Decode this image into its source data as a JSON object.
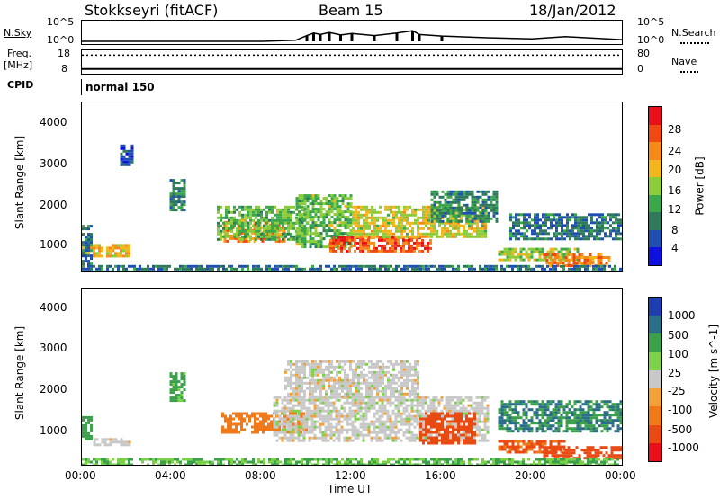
{
  "header": {
    "station": "Stokkseyri (fitACF)",
    "beam": "Beam 15",
    "date": "18/Jan/2012"
  },
  "top_panels": {
    "nsky_label": "N.Sky",
    "nsky_ticks": [
      "10^5",
      "10^0"
    ],
    "nsearch_label": "N.Search",
    "nsearch_ticks": [
      "10^5",
      "10^0"
    ],
    "freq_label": "Freq.",
    "freq_unit": "[MHz]",
    "freq_ticks": [
      "18",
      "8"
    ],
    "nave_label": "Nave",
    "nave_ticks": [
      "80",
      "0"
    ],
    "cpid_label": "CPID",
    "cpid_value": "normal 150"
  },
  "axes": {
    "ylabel": "Slant Range [km]",
    "xlabel": "Time UT",
    "yticks": [
      "4000",
      "3000",
      "2000",
      "1000"
    ],
    "xticks": [
      "00:00",
      "04:00",
      "08:00",
      "12:00",
      "16:00",
      "20:00",
      "00:00"
    ]
  },
  "colorbars": {
    "power": {
      "title": "Power [dB]",
      "labels": [
        "28",
        "24",
        "20",
        "16",
        "12",
        "8",
        "4"
      ],
      "colors": [
        "#e8101a",
        "#f04a12",
        "#f58a1a",
        "#f2b51e",
        "#8ccc3a",
        "#3aa84a",
        "#2e7a5a",
        "#1f4fb0",
        "#1010e0"
      ]
    },
    "velocity": {
      "title": "Velocity [m s^-1]",
      "labels": [
        "1000",
        "500",
        "100",
        "25",
        "-25",
        "-100",
        "-500",
        "-1000"
      ],
      "colors": [
        "#1f3fb0",
        "#2a6e8a",
        "#3aa04a",
        "#7cd04a",
        "#c8c8c8",
        "#f2a13a",
        "#f07a1a",
        "#e84a12",
        "#e8101a"
      ]
    }
  },
  "chart_data": [
    {
      "type": "line",
      "title": "N.Sky / N.Search",
      "x_range": [
        0,
        24
      ],
      "y_scale": "log",
      "y_range": [
        1,
        100000
      ],
      "series": [
        {
          "name": "N.Sky",
          "x": [
            0,
            2,
            4,
            6,
            8,
            9.5,
            10,
            10.3,
            10.6,
            11,
            11.5,
            12,
            13,
            14,
            14.7,
            15,
            16,
            18,
            20,
            21.5,
            24
          ],
          "y": [
            1,
            1,
            1,
            1,
            1,
            2,
            40,
            200,
            80,
            300,
            60,
            150,
            40,
            200,
            900,
            80,
            30,
            10,
            5,
            20,
            3
          ]
        }
      ]
    },
    {
      "type": "line",
      "title": "Freq. / Nave",
      "x_range": [
        0,
        24
      ],
      "series": [
        {
          "name": "Freq.",
          "x": [
            0,
            24
          ],
          "y": [
            16.8,
            16.8
          ]
        },
        {
          "name": "Nave",
          "x": [
            0,
            24
          ],
          "y": [
            9,
            9
          ]
        }
      ]
    },
    {
      "type": "heatmap",
      "title": "Power [dB]",
      "x_range": [
        0,
        24
      ],
      "y_range": [
        180,
        4600
      ],
      "regions": [
        {
          "t0": 0.0,
          "t1": 2.1,
          "r0": 600,
          "r1": 900,
          "value": 20
        },
        {
          "t0": 0.0,
          "t1": 0.4,
          "r0": 400,
          "r1": 1400,
          "value": 8
        },
        {
          "t0": 1.7,
          "t1": 2.3,
          "r0": 3000,
          "r1": 3500,
          "value": 6
        },
        {
          "t0": 3.9,
          "t1": 4.6,
          "r0": 1800,
          "r1": 2600,
          "value": 10
        },
        {
          "t0": 6.3,
          "t1": 9.0,
          "r0": 1000,
          "r1": 1500,
          "value": 24
        },
        {
          "t0": 6.0,
          "t1": 10.0,
          "r0": 1000,
          "r1": 1900,
          "value": 14
        },
        {
          "t0": 9.5,
          "t1": 12.0,
          "r0": 800,
          "r1": 2200,
          "value": 14
        },
        {
          "t0": 11.0,
          "t1": 15.5,
          "r0": 700,
          "r1": 1100,
          "value": 26
        },
        {
          "t0": 12.0,
          "t1": 18.0,
          "r0": 1100,
          "r1": 1900,
          "value": 18
        },
        {
          "t0": 15.5,
          "t1": 18.5,
          "r0": 1500,
          "r1": 2300,
          "value": 10
        },
        {
          "t0": 18.5,
          "t1": 22.0,
          "r0": 500,
          "r1": 800,
          "value": 16
        },
        {
          "t0": 20.5,
          "t1": 23.5,
          "r0": 350,
          "r1": 650,
          "value": 24
        },
        {
          "t0": 19.0,
          "t1": 24.0,
          "r0": 1000,
          "r1": 1700,
          "value": 8
        },
        {
          "t0": 0.0,
          "t1": 24.0,
          "r0": 180,
          "r1": 350,
          "value": 8
        }
      ]
    },
    {
      "type": "heatmap",
      "title": "Velocity",
      "x_range": [
        0,
        24
      ],
      "y_range": [
        180,
        4600
      ],
      "regions": [
        {
          "t0": 0.5,
          "t1": 2.1,
          "r0": 650,
          "r1": 850,
          "value": 0
        },
        {
          "t0": 0.0,
          "t1": 0.4,
          "r0": 800,
          "r1": 1400,
          "value": 150
        },
        {
          "t0": 3.9,
          "t1": 4.6,
          "r0": 1800,
          "r1": 2500,
          "value": 80
        },
        {
          "t0": 6.2,
          "t1": 10.0,
          "r0": 1000,
          "r1": 1500,
          "value": -200
        },
        {
          "t0": 8.5,
          "t1": 18.0,
          "r0": 800,
          "r1": 1900,
          "value": 0
        },
        {
          "t0": 9.0,
          "t1": 15.0,
          "r0": 1900,
          "r1": 2800,
          "value": 0
        },
        {
          "t0": 15.0,
          "t1": 17.5,
          "r0": 700,
          "r1": 1500,
          "value": -400
        },
        {
          "t0": 18.5,
          "t1": 21.5,
          "r0": 500,
          "r1": 800,
          "value": -300
        },
        {
          "t0": 20.5,
          "t1": 24.0,
          "r0": 350,
          "r1": 650,
          "value": -400
        },
        {
          "t0": 18.5,
          "t1": 24.0,
          "r0": 1000,
          "r1": 1800,
          "value": 300
        },
        {
          "t0": 0.0,
          "t1": 24.0,
          "r0": 180,
          "r1": 350,
          "value": 60
        }
      ]
    }
  ]
}
